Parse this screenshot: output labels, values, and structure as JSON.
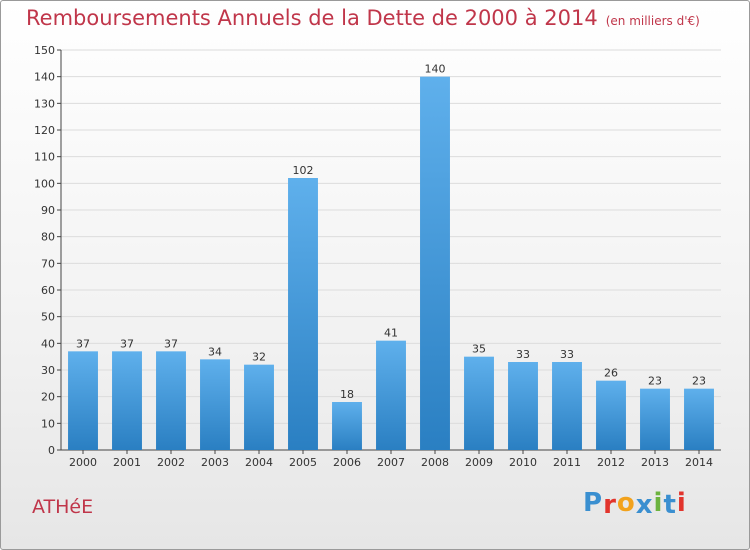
{
  "title": "Remboursements Annuels de la Dette de 2000 à 2014",
  "subtitle": "(en milliers d'€)",
  "commune": "ATHéE",
  "logo": {
    "letters": [
      "P",
      "r",
      "o",
      "x",
      "i",
      "t",
      "i"
    ],
    "colors": [
      "#3a8fd0",
      "#e2342c",
      "#f2a21c",
      "#3a8fd0",
      "#6cb33f",
      "#3a8fd0",
      "#e2342c"
    ]
  },
  "colors": {
    "bar_light": "#5fb0ec",
    "bar_dark": "#2a7fc2",
    "title": "#c0364a"
  },
  "chart_data": {
    "type": "bar",
    "categories": [
      "2000",
      "2001",
      "2002",
      "2003",
      "2004",
      "2005",
      "2006",
      "2007",
      "2008",
      "2009",
      "2010",
      "2011",
      "2012",
      "2013",
      "2014"
    ],
    "values": [
      37,
      37,
      37,
      34,
      32,
      102,
      18,
      41,
      140,
      35,
      33,
      33,
      26,
      23,
      23
    ],
    "data_labels": [
      "37",
      "37",
      "37",
      "34",
      "32",
      "102",
      "18",
      "41",
      "140",
      "35",
      "33",
      "33",
      "26",
      "23",
      "23"
    ],
    "y_ticks": [
      "0",
      "10",
      "20",
      "30",
      "40",
      "50",
      "60",
      "70",
      "80",
      "90",
      "100",
      "110",
      "120",
      "130",
      "140",
      "150"
    ],
    "ylim": [
      0,
      150
    ],
    "grid": true,
    "legend": "none"
  }
}
